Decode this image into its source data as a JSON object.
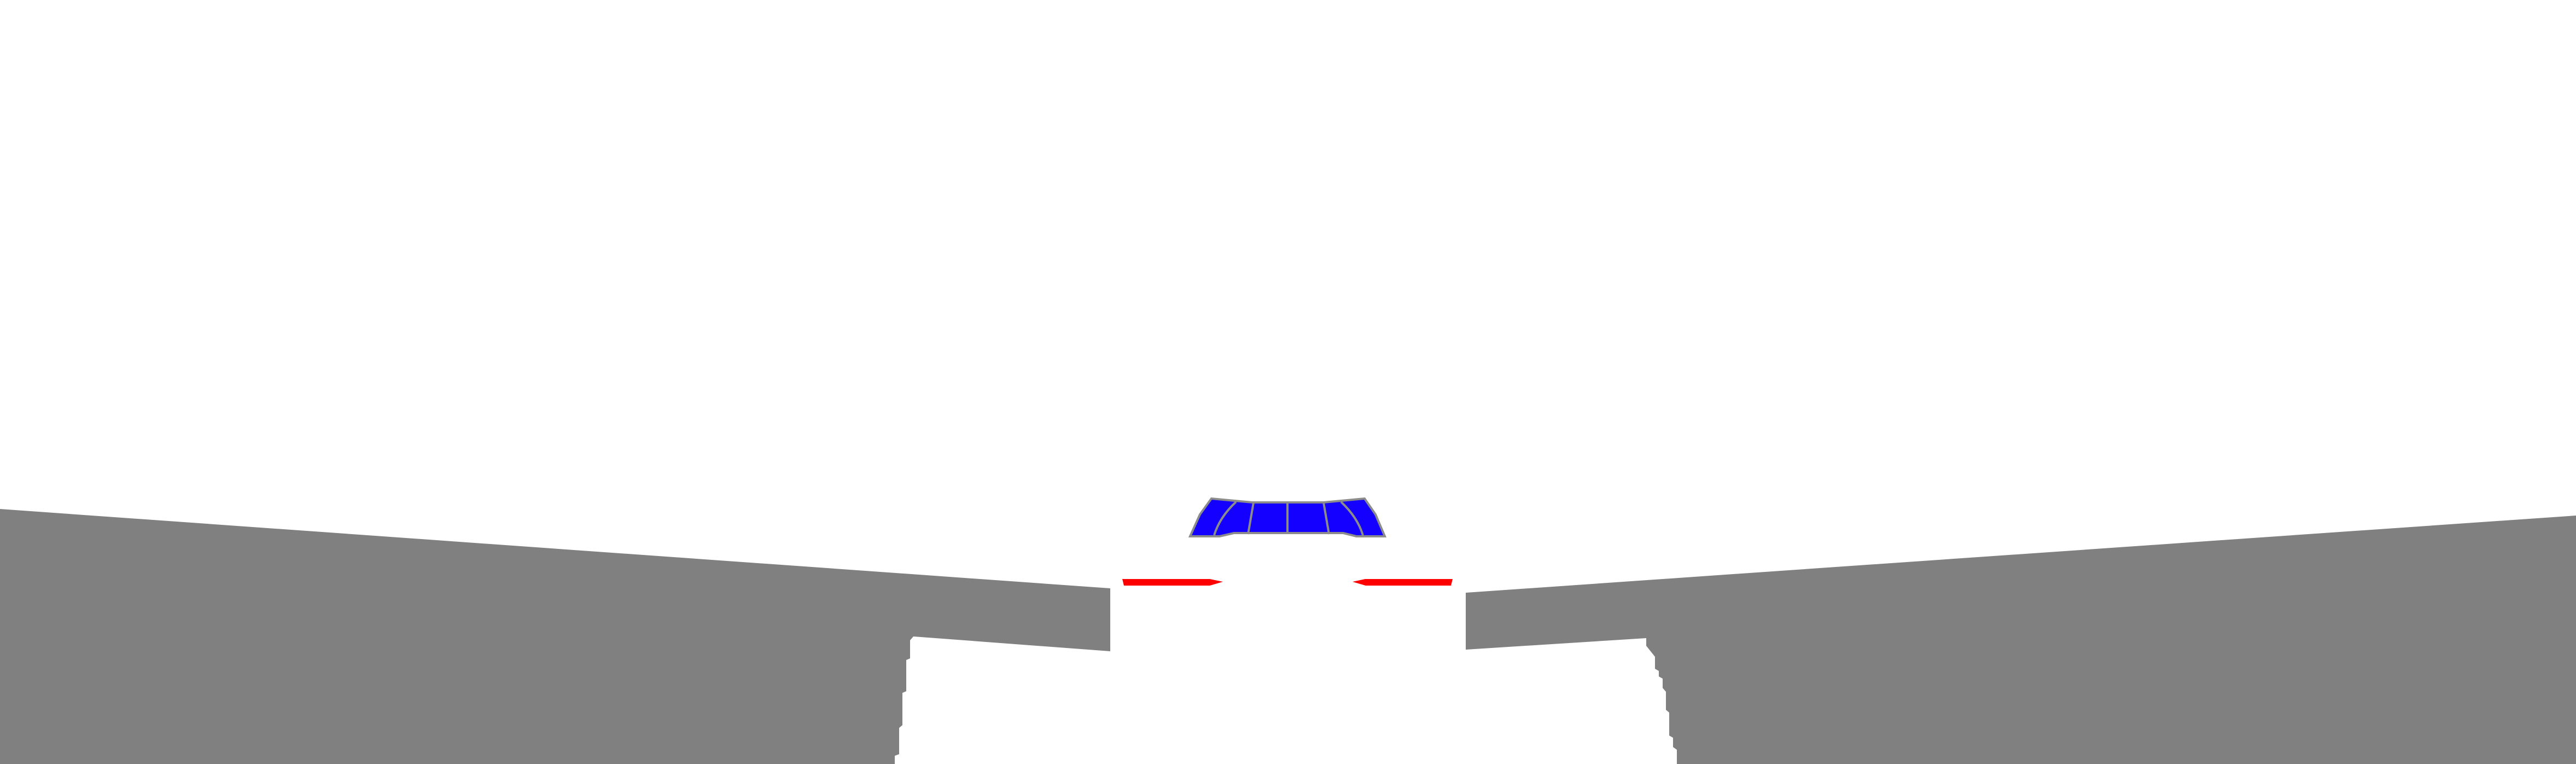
{
  "scene": {
    "type": "3d-track-view",
    "colors": {
      "sky": "#ffffff",
      "ground": "#808080",
      "track": "#ffffff",
      "wing": "#1400ff",
      "wing_outline": "#8c8c8c",
      "wing_lines": "#8c8c8c",
      "mirrors": "#ff0000"
    }
  }
}
